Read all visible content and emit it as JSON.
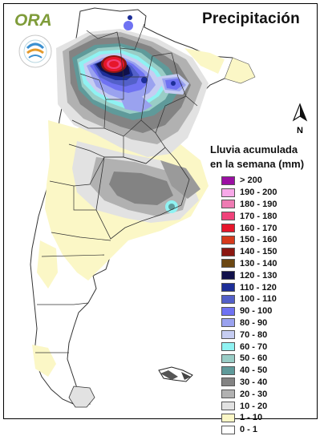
{
  "title": "Precipitación",
  "logo": {
    "text": "ORA",
    "ring_text": "OFICINA DE RIESGO AGROPECUARIO"
  },
  "north_arrow": {
    "label": "N"
  },
  "legend": {
    "title_line1": "Lluvia acumulada",
    "title_line2": "en la semana (mm)",
    "items": [
      {
        "label": "> 200",
        "color": "#9b0fa3"
      },
      {
        "label": "190 - 200",
        "color": "#f7a8e8"
      },
      {
        "label": "180 - 190",
        "color": "#ee7bb3"
      },
      {
        "label": "170 - 180",
        "color": "#f0427a"
      },
      {
        "label": "160 - 170",
        "color": "#e6162b"
      },
      {
        "label": "150 - 160",
        "color": "#d63a1c"
      },
      {
        "label": "140 - 150",
        "color": "#8b1711"
      },
      {
        "label": "130 - 140",
        "color": "#6b4713"
      },
      {
        "label": "120 - 130",
        "color": "#10104a"
      },
      {
        "label": "110 - 120",
        "color": "#1d2e98"
      },
      {
        "label": "100 - 110",
        "color": "#5360c9"
      },
      {
        "label": "90 - 100",
        "color": "#6f72f2"
      },
      {
        "label": "80 - 90",
        "color": "#9aa2ef"
      },
      {
        "label": "70 - 80",
        "color": "#c6cdf2"
      },
      {
        "label": "60 - 70",
        "color": "#8ff2f2"
      },
      {
        "label": "50 - 60",
        "color": "#99cdc6"
      },
      {
        "label": "40 - 50",
        "color": "#5f9a9a"
      },
      {
        "label": "30 - 40",
        "color": "#838383"
      },
      {
        "label": "20 - 30",
        "color": "#b1b1b1"
      },
      {
        "label": "10 - 20",
        "color": "#e2e2e2"
      },
      {
        "label": "1 - 10",
        "color": "#fbf7c6"
      },
      {
        "label": "0 - 1",
        "color": "#ffffff"
      }
    ]
  }
}
